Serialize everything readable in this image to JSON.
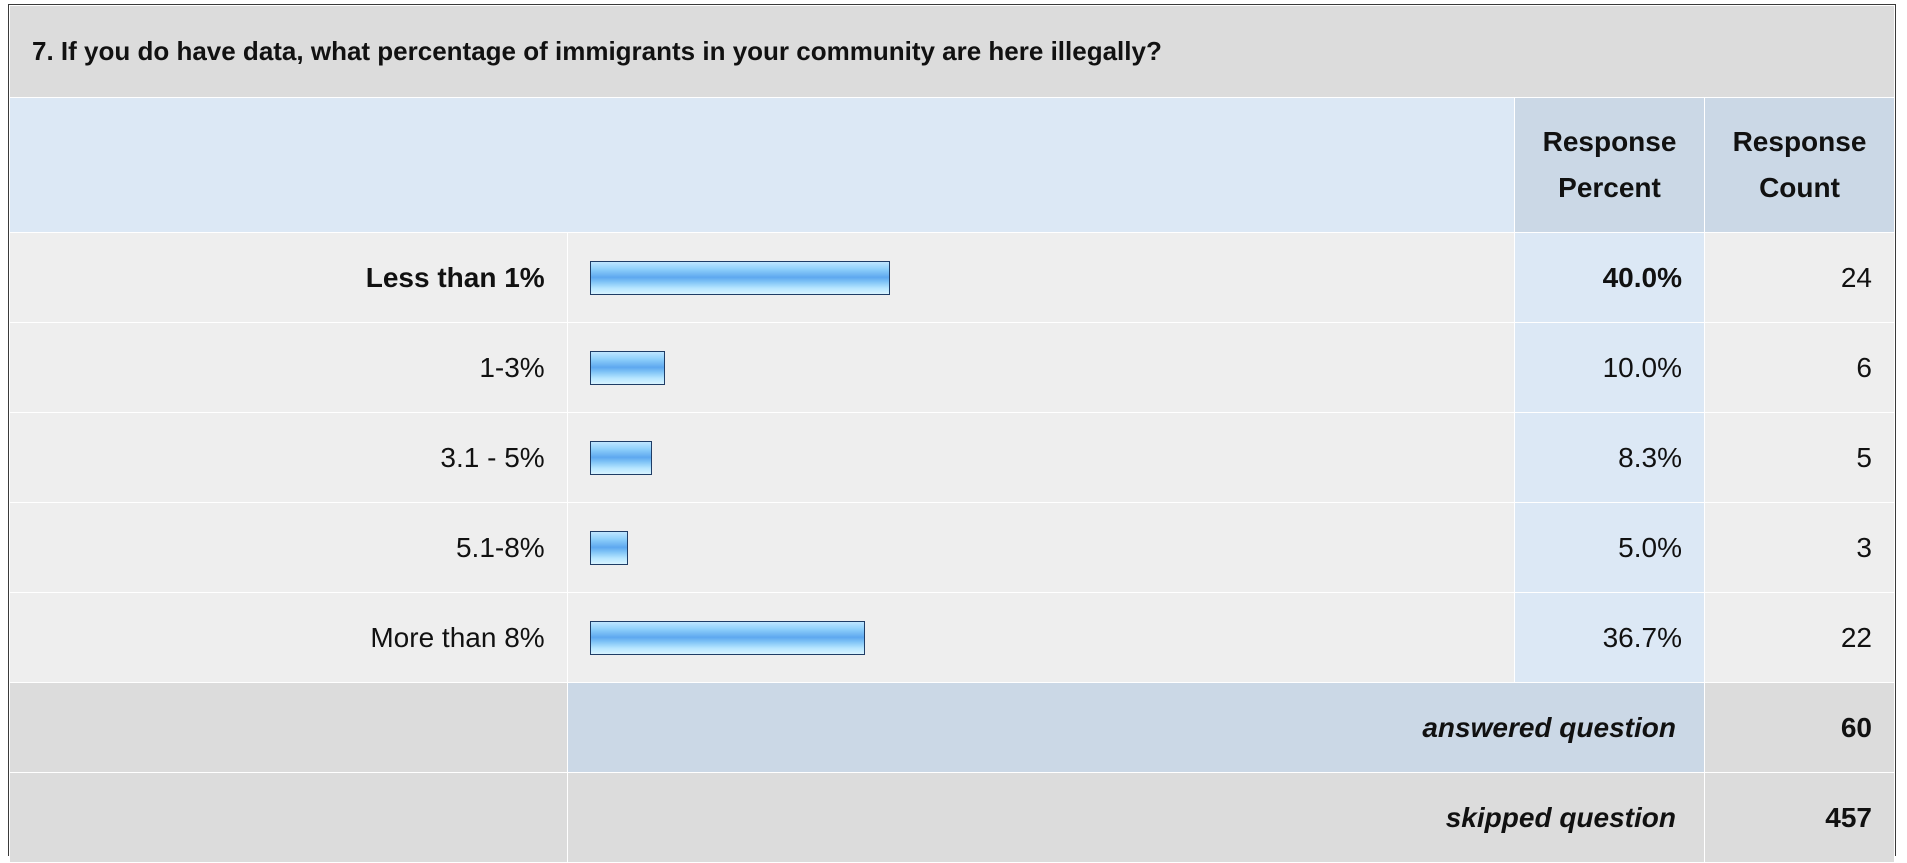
{
  "question": {
    "title": "7. If you do have data, what percentage of immigrants in your community are here illegally?"
  },
  "headers": {
    "percent": "Response Percent",
    "count": "Response Count"
  },
  "answers": [
    {
      "label": "Less than 1%",
      "percent_label": "40.0%",
      "count_label": "24",
      "highlight": true
    },
    {
      "label": "1-3%",
      "percent_label": "10.0%",
      "count_label": "6",
      "highlight": false
    },
    {
      "label": "3.1 - 5%",
      "percent_label": "8.3%",
      "count_label": "5",
      "highlight": false
    },
    {
      "label": "5.1-8%",
      "percent_label": "5.0%",
      "count_label": "3",
      "highlight": false
    },
    {
      "label": "More than 8%",
      "percent_label": "36.7%",
      "count_label": "22",
      "highlight": false
    }
  ],
  "summary": {
    "answered_label": "answered question",
    "answered_value": "60",
    "skipped_label": "skipped question",
    "skipped_value": "457"
  },
  "colors": {
    "bar_border": "#1f3d66",
    "bar_fill": "#5ea8ef",
    "header_bg": "#dcdcdc",
    "column_header_bg": "#cbd8e6"
  },
  "chart_data": {
    "type": "bar",
    "orientation": "horizontal",
    "categories": [
      "Less than 1%",
      "1-3%",
      "3.1 - 5%",
      "5.1-8%",
      "More than 8%"
    ],
    "values": [
      40.0,
      10.0,
      8.3,
      5.0,
      36.7
    ],
    "counts": [
      24,
      6,
      5,
      3,
      22
    ],
    "title": "7. If you do have data, what percentage of immigrants in your community are here illegally?",
    "xlim": [
      0,
      100
    ]
  }
}
